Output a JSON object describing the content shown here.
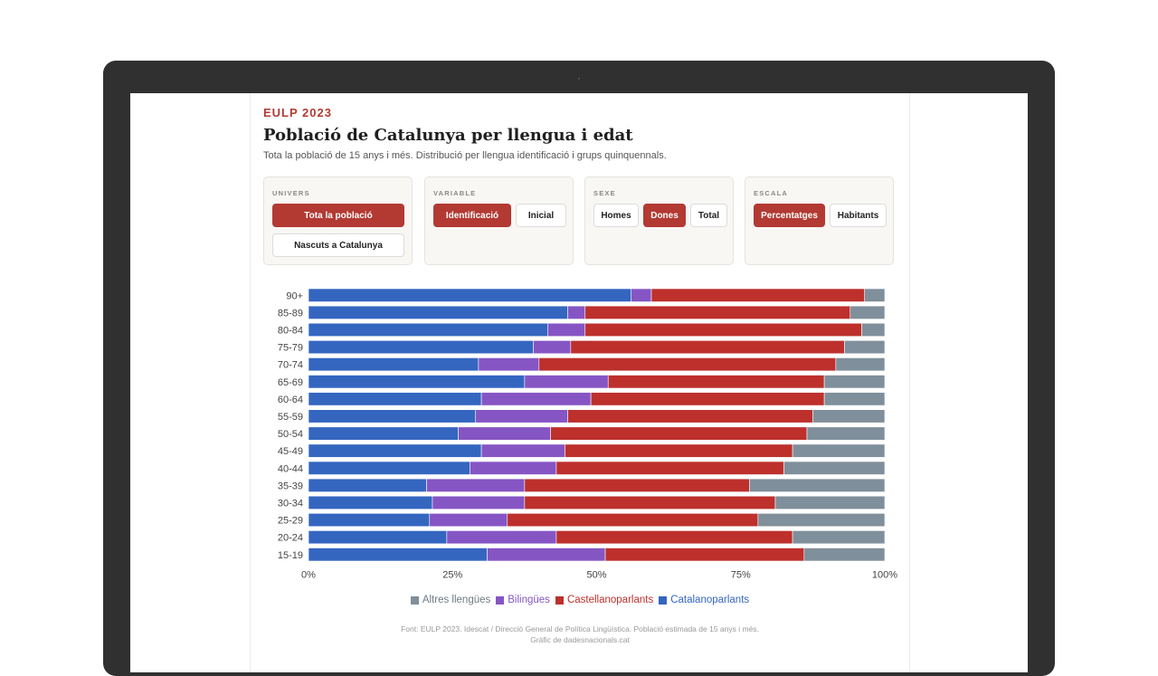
{
  "header": {
    "kicker": "EULP 2023",
    "title": "Població de Catalunya per llengua i edat",
    "subtitle": "Tota la població de 15 anys i més. Distribució per llengua identificació i grups quinquennals."
  },
  "controls": {
    "univers": {
      "label": "UNIVERS",
      "options": [
        "Tota la població",
        "Nascuts a Catalunya"
      ],
      "selected": "Tota la població"
    },
    "variable": {
      "label": "VARIABLE",
      "options": [
        "Identificació",
        "Inicial"
      ],
      "selected": "Identificació"
    },
    "sexe": {
      "label": "SEXE",
      "options": [
        "Homes",
        "Dones",
        "Total"
      ],
      "selected": "Dones"
    },
    "escala": {
      "label": "ESCALA",
      "options": [
        "Percentatges",
        "Habitants"
      ],
      "selected": "Percentatges"
    }
  },
  "colors": {
    "Catalanoparlants": "#3466c0",
    "Bilingües": "#8655c4",
    "Castellanoparlants": "#bd302c",
    "Altres llengües": "#7f8f9b",
    "accent": "#b23a33"
  },
  "chart_data": {
    "type": "bar",
    "orientation": "horizontal",
    "stacked": true,
    "categories": [
      "90+",
      "85-89",
      "80-84",
      "75-79",
      "70-74",
      "65-69",
      "60-64",
      "55-59",
      "50-54",
      "45-49",
      "40-44",
      "35-39",
      "30-34",
      "25-29",
      "20-24",
      "15-19"
    ],
    "series": [
      {
        "name": "Catalanoparlants",
        "values": [
          56.0,
          45.0,
          41.5,
          39.0,
          29.5,
          37.5,
          30.0,
          29.0,
          26.0,
          30.0,
          28.0,
          20.5,
          21.5,
          21.0,
          24.0,
          31.0
        ]
      },
      {
        "name": "Bilingües",
        "values": [
          3.5,
          3.0,
          6.5,
          6.5,
          10.5,
          14.5,
          19.0,
          16.0,
          16.0,
          14.5,
          15.0,
          17.0,
          16.0,
          13.5,
          19.0,
          20.5
        ]
      },
      {
        "name": "Castellanoparlants",
        "values": [
          37.0,
          46.0,
          48.0,
          47.5,
          51.5,
          37.5,
          40.5,
          42.5,
          44.5,
          39.5,
          39.5,
          39.0,
          43.5,
          43.5,
          41.0,
          34.5
        ]
      },
      {
        "name": "Altres llengües",
        "values": [
          3.5,
          6.0,
          4.0,
          7.0,
          8.5,
          10.5,
          10.5,
          12.5,
          13.5,
          16.0,
          17.5,
          23.5,
          19.0,
          22.0,
          16.0,
          14.0
        ]
      }
    ],
    "xlim": [
      0,
      100
    ],
    "x_ticks": [
      "0%",
      "25%",
      "50%",
      "75%",
      "100%"
    ],
    "legend_order": [
      "Altres llengües",
      "Bilingües",
      "Castellanoparlants",
      "Catalanoparlants"
    ],
    "legend_position": "bottom"
  },
  "source": {
    "line1": "Font: EULP 2023. Idescat / Direcció General de Política Lingüística. Població estimada de 15 anys i més.",
    "line2": "Gràfic de dadesnacionals.cat"
  }
}
